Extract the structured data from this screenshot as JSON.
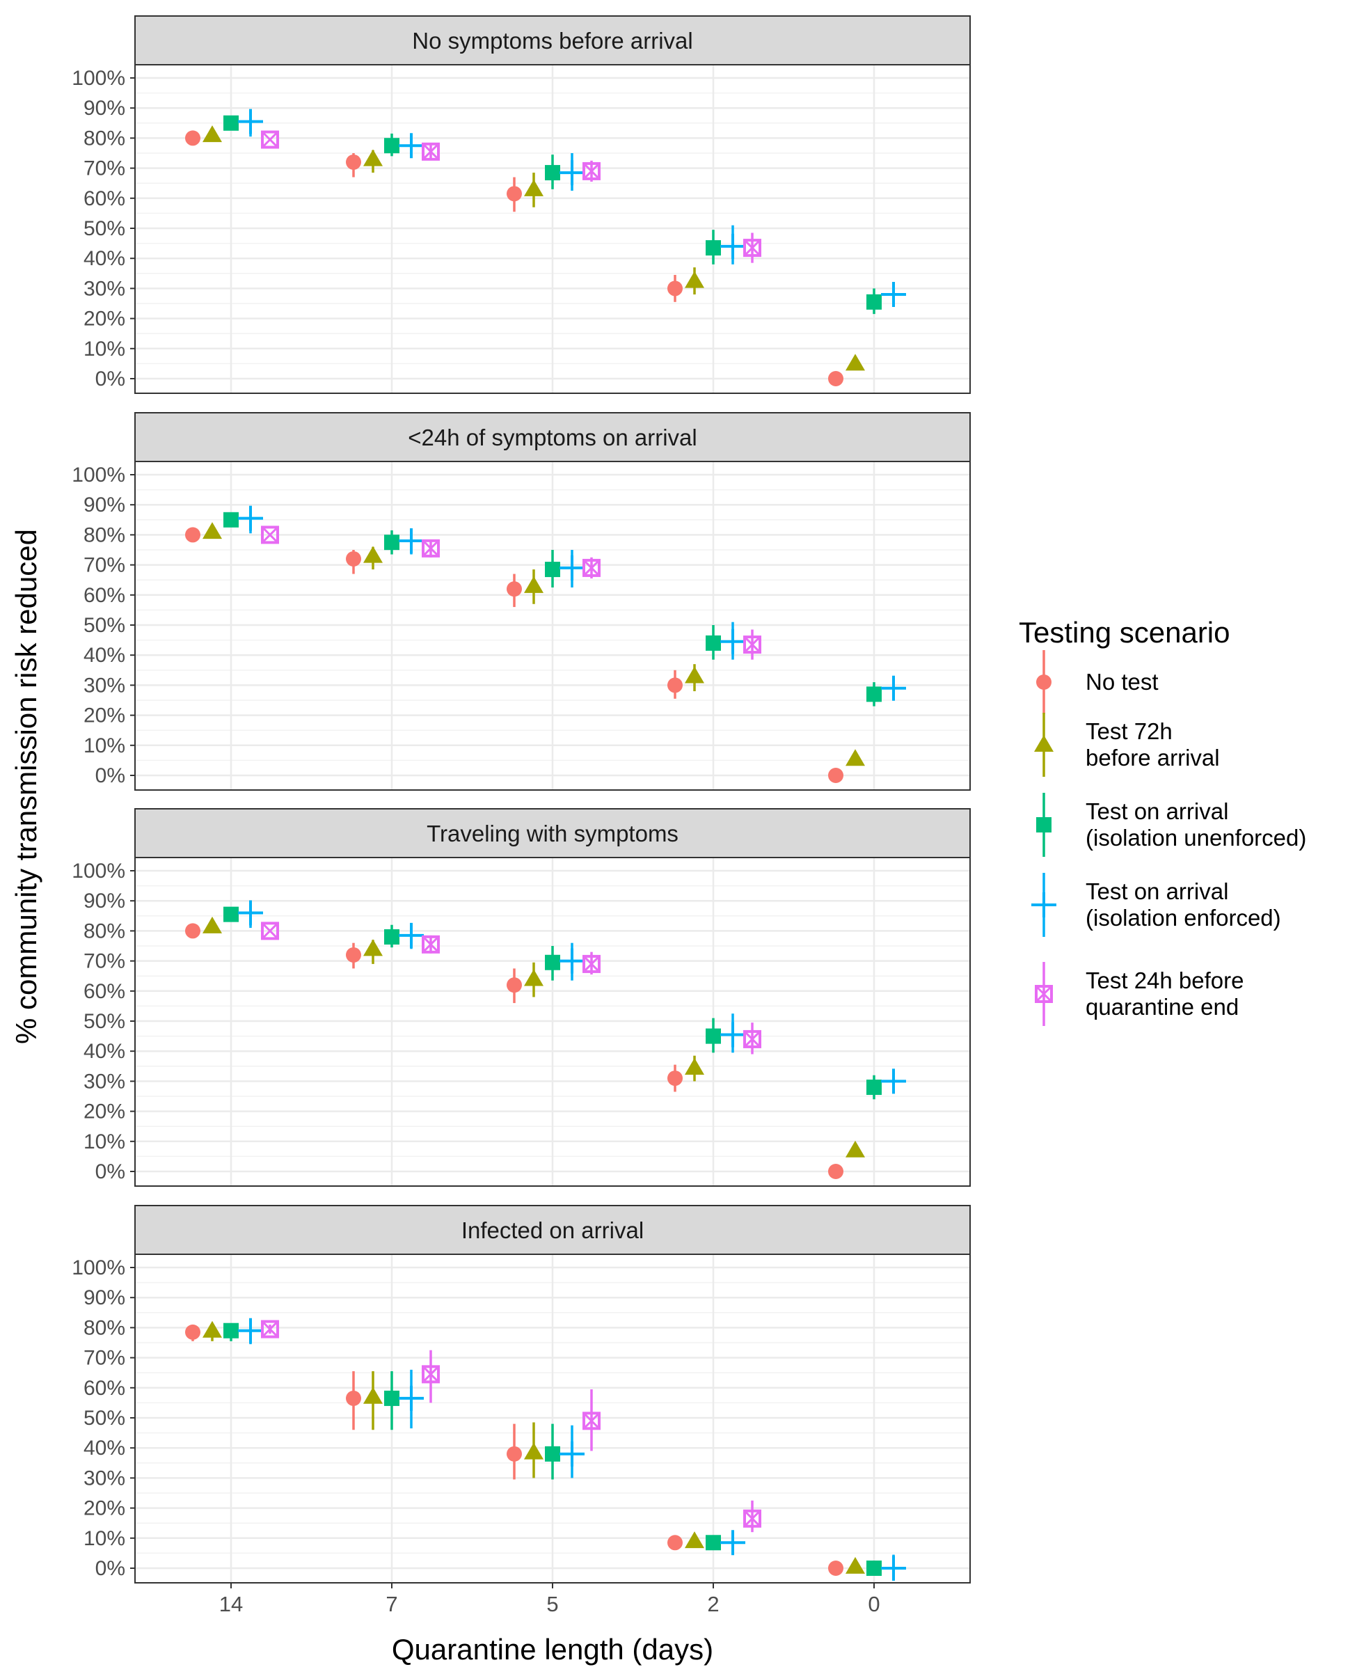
{
  "chart_data": {
    "type": "scatter",
    "xlabel": "Quarantine length (days)",
    "ylabel": "% community transmission risk reduced",
    "categories": [
      "14",
      "7",
      "5",
      "2",
      "0"
    ],
    "y_ticks": [
      "0%",
      "10%",
      "20%",
      "30%",
      "40%",
      "50%",
      "60%",
      "70%",
      "80%",
      "90%",
      "100%"
    ],
    "ylim": [
      0,
      100
    ],
    "legend": {
      "title": "Testing scenario",
      "position": "right",
      "entries": [
        {
          "key": "no_test",
          "lines": [
            "No test"
          ],
          "color": "#F8766D",
          "shape": "circle"
        },
        {
          "key": "test72",
          "lines": [
            "Test 72h",
            "before arrival"
          ],
          "color": "#A3A500",
          "shape": "triangle"
        },
        {
          "key": "arrival_unenf",
          "lines": [
            "Test on arrival",
            "(isolation unenforced)"
          ],
          "color": "#00BF7D",
          "shape": "square"
        },
        {
          "key": "arrival_enf",
          "lines": [
            "Test on arrival",
            "(isolation enforced)"
          ],
          "color": "#00B0F6",
          "shape": "plus"
        },
        {
          "key": "test24",
          "lines": [
            "Test 24h before",
            "quarantine end"
          ],
          "color": "#E76BF3",
          "shape": "boxcross"
        }
      ]
    },
    "panels": [
      {
        "title": "No symptoms before arrival",
        "series": {
          "no_test": [
            [
              80,
              79,
              81
            ],
            [
              72,
              67,
              75
            ],
            [
              61.5,
              55.5,
              67
            ],
            [
              30,
              25.5,
              34.5
            ],
            [
              0,
              0,
              0
            ]
          ],
          "test72": [
            [
              81,
              80,
              82
            ],
            [
              73,
              68.5,
              76
            ],
            [
              63,
              57,
              68.5
            ],
            [
              32.5,
              28,
              37
            ],
            [
              5,
              4,
              6
            ]
          ],
          "arrival_unenf": [
            [
              85,
              83,
              87
            ],
            [
              77.5,
              74,
              81.5
            ],
            [
              68.5,
              63,
              74.5
            ],
            [
              43.5,
              38,
              49.5
            ],
            [
              25.5,
              21.5,
              30
            ]
          ],
          "arrival_enf": [
            [
              85.5,
              80.5,
              89.5
            ],
            [
              77.5,
              73.5,
              81.5
            ],
            [
              68.5,
              62.5,
              75
            ],
            [
              44,
              38,
              51
            ],
            [
              28,
              24,
              32
            ]
          ],
          "test24": [
            [
              79.5,
              79,
              80
            ],
            [
              75.5,
              73,
              78
            ],
            [
              69,
              65.5,
              72.5
            ],
            [
              43.5,
              38.5,
              48.5
            ],
            null
          ]
        }
      },
      {
        "title": "<24h of symptoms on arrival",
        "series": {
          "no_test": [
            [
              80,
              79,
              81
            ],
            [
              72,
              67,
              75
            ],
            [
              62,
              56,
              67
            ],
            [
              30,
              25.5,
              35
            ],
            [
              0,
              0,
              0
            ]
          ],
          "test72": [
            [
              81,
              80,
              82
            ],
            [
              73,
              68.5,
              76
            ],
            [
              63,
              57,
              68.5
            ],
            [
              33,
              28,
              37
            ],
            [
              5.5,
              4.5,
              6.5
            ]
          ],
          "arrival_unenf": [
            [
              85,
              83,
              87
            ],
            [
              77.5,
              73.5,
              81.5
            ],
            [
              68.5,
              62.5,
              75
            ],
            [
              44,
              38.5,
              50
            ],
            [
              27,
              23,
              31
            ]
          ],
          "arrival_enf": [
            [
              85.5,
              80.5,
              89.5
            ],
            [
              78,
              73.5,
              82
            ],
            [
              69,
              62.5,
              75
            ],
            [
              44.5,
              38.5,
              51
            ],
            [
              29,
              25,
              33
            ]
          ],
          "test24": [
            [
              80,
              79.5,
              80.5
            ],
            [
              75.5,
              72.5,
              78
            ],
            [
              69,
              65.5,
              72.5
            ],
            [
              43.5,
              38.5,
              48.5
            ],
            null
          ]
        }
      },
      {
        "title": "Traveling with symptoms",
        "series": {
          "no_test": [
            [
              80,
              79,
              81
            ],
            [
              72,
              67.5,
              76
            ],
            [
              62,
              56,
              67.5
            ],
            [
              31,
              26.5,
              35.5
            ],
            [
              0,
              0,
              0
            ]
          ],
          "test72": [
            [
              81.5,
              80.5,
              82.5
            ],
            [
              74,
              69,
              77
            ],
            [
              64,
              58,
              69.5
            ],
            [
              34.5,
              30,
              38.5
            ],
            [
              7,
              6,
              8
            ]
          ],
          "arrival_unenf": [
            [
              85.5,
              83.5,
              87.5
            ],
            [
              78,
              74.5,
              82
            ],
            [
              69.5,
              63.5,
              75
            ],
            [
              45,
              39.5,
              51
            ],
            [
              28,
              24,
              32
            ]
          ],
          "arrival_enf": [
            [
              86,
              81,
              90
            ],
            [
              78.5,
              74,
              82.5
            ],
            [
              70,
              63.5,
              76
            ],
            [
              45.5,
              39.5,
              52.5
            ],
            [
              30,
              26,
              34
            ]
          ],
          "test24": [
            [
              80,
              79.5,
              80.5
            ],
            [
              75.5,
              72.5,
              78.5
            ],
            [
              69,
              65.5,
              73
            ],
            [
              44,
              39,
              49.5
            ],
            null
          ]
        }
      },
      {
        "title": "Infected on arrival",
        "series": {
          "no_test": [
            [
              78.5,
              75.5,
              80
            ],
            [
              56.5,
              46,
              65.5
            ],
            [
              38,
              29.5,
              48
            ],
            [
              8.5,
              6.5,
              10
            ],
            [
              0,
              0,
              0
            ]
          ],
          "test72": [
            [
              79,
              75.5,
              80
            ],
            [
              57,
              46,
              65.5
            ],
            [
              38.5,
              30,
              48.5
            ],
            [
              9,
              7,
              10.5
            ],
            [
              0.5,
              0,
              1
            ]
          ],
          "arrival_unenf": [
            [
              79,
              75.5,
              80.5
            ],
            [
              56.5,
              46,
              65.5
            ],
            [
              38,
              29.5,
              48
            ],
            [
              8.5,
              6.5,
              10.5
            ],
            [
              0,
              0,
              0
            ]
          ],
          "arrival_enf": [
            [
              79,
              74.5,
              82
            ],
            [
              56.5,
              46.5,
              66
            ],
            [
              38,
              30,
              47.5
            ],
            [
              8.5,
              4.5,
              11.5
            ],
            [
              0,
              -3.5,
              4.5
            ]
          ],
          "test24": [
            [
              79.5,
              78,
              81
            ],
            [
              64.5,
              55,
              72.5
            ],
            [
              49,
              39,
              59.5
            ],
            [
              16.5,
              12,
              22.5
            ],
            null
          ]
        }
      }
    ]
  }
}
